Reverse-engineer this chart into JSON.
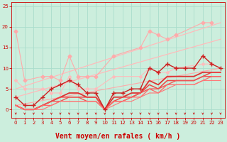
{
  "xlabel": "Vent moyen/en rafales ( km/h )",
  "xlim": [
    -0.5,
    23.5
  ],
  "ylim": [
    -2,
    26
  ],
  "bg_color": "#cceedd",
  "grid_color": "#aaddcc",
  "x_ticks": [
    0,
    1,
    2,
    3,
    4,
    5,
    6,
    7,
    8,
    9,
    10,
    11,
    12,
    13,
    14,
    15,
    16,
    17,
    18,
    19,
    20,
    21,
    22,
    23
  ],
  "y_ticks": [
    0,
    5,
    10,
    15,
    20,
    25
  ],
  "lines": [
    {
      "x": [
        0,
        1,
        3,
        4,
        5,
        6,
        7,
        8,
        9,
        11,
        14,
        15,
        16,
        17,
        18,
        21,
        22
      ],
      "y": [
        19,
        7,
        8,
        8,
        7,
        13,
        8,
        8,
        8,
        13,
        15,
        19,
        18,
        17,
        18,
        21,
        21
      ],
      "color": "#ffaaaa",
      "lw": 0.8,
      "marker": "D",
      "ms": 2.5
    },
    {
      "x": [
        0,
        23
      ],
      "y": [
        5,
        21
      ],
      "color": "#ffbbbb",
      "lw": 0.9,
      "marker": null,
      "ms": 0
    },
    {
      "x": [
        0,
        23
      ],
      "y": [
        3,
        17
      ],
      "color": "#ffbbbb",
      "lw": 0.9,
      "marker": null,
      "ms": 0
    },
    {
      "x": [
        0,
        1,
        3,
        4,
        5,
        6,
        7,
        8,
        9,
        11,
        14,
        15,
        16,
        17,
        18,
        21,
        22
      ],
      "y": [
        7,
        5,
        5,
        4,
        4,
        8,
        5,
        5,
        5,
        8,
        8,
        10,
        9,
        9,
        10,
        11,
        11
      ],
      "color": "#ffbbbb",
      "lw": 0.8,
      "marker": "D",
      "ms": 2.0
    },
    {
      "x": [
        0,
        23
      ],
      "y": [
        1,
        10
      ],
      "color": "#ffaaaa",
      "lw": 0.8,
      "marker": null,
      "ms": 0
    },
    {
      "x": [
        0,
        1,
        2,
        3,
        4,
        5,
        6,
        7,
        8,
        9,
        10,
        11,
        12,
        13,
        14,
        15,
        16,
        17,
        18,
        19,
        20,
        21,
        22,
        23
      ],
      "y": [
        3,
        1,
        1,
        3,
        5,
        6,
        7,
        6,
        4,
        4,
        0,
        4,
        4,
        5,
        5,
        10,
        9,
        11,
        10,
        10,
        10,
        13,
        11,
        10
      ],
      "color": "#cc2222",
      "lw": 1.0,
      "marker": "+",
      "ms": 4
    },
    {
      "x": [
        0,
        1,
        2,
        3,
        4,
        5,
        6,
        7,
        8,
        9,
        10,
        11,
        12,
        13,
        14,
        15,
        16,
        17,
        18,
        19,
        20,
        21,
        22,
        23
      ],
      "y": [
        1,
        0,
        0,
        1,
        2,
        3,
        4,
        4,
        3,
        3,
        0,
        3,
        3,
        4,
        4,
        7,
        6,
        8,
        8,
        8,
        8,
        9,
        9,
        9
      ],
      "color": "#dd3333",
      "lw": 1.3,
      "marker": null,
      "ms": 0
    },
    {
      "x": [
        0,
        1,
        2,
        3,
        4,
        5,
        6,
        7,
        8,
        9,
        10,
        11,
        12,
        13,
        14,
        15,
        16,
        17,
        18,
        19,
        20,
        21,
        22,
        23
      ],
      "y": [
        1,
        0,
        0,
        1,
        2,
        3,
        3,
        3,
        3,
        3,
        0,
        2,
        3,
        3,
        4,
        6,
        5,
        7,
        7,
        7,
        7,
        8,
        9,
        9
      ],
      "color": "#ee4444",
      "lw": 1.1,
      "marker": null,
      "ms": 0
    },
    {
      "x": [
        0,
        1,
        2,
        3,
        4,
        5,
        6,
        7,
        8,
        9,
        10,
        11,
        12,
        13,
        14,
        15,
        16,
        17,
        18,
        19,
        20,
        21,
        22,
        23
      ],
      "y": [
        1,
        0,
        0,
        1,
        2,
        2,
        3,
        3,
        2,
        2,
        0,
        2,
        2,
        3,
        4,
        5,
        5,
        6,
        7,
        7,
        7,
        8,
        8,
        8
      ],
      "color": "#ee5555",
      "lw": 1.0,
      "marker": null,
      "ms": 0
    },
    {
      "x": [
        0,
        1,
        2,
        3,
        4,
        5,
        6,
        7,
        8,
        9,
        10,
        11,
        12,
        13,
        14,
        15,
        16,
        17,
        18,
        19,
        20,
        21,
        22,
        23
      ],
      "y": [
        1,
        0,
        0,
        1,
        1,
        2,
        2,
        2,
        2,
        2,
        0,
        2,
        2,
        3,
        3,
        5,
        4,
        6,
        6,
        6,
        6,
        7,
        8,
        8
      ],
      "color": "#ff6666",
      "lw": 0.9,
      "marker": null,
      "ms": 0
    },
    {
      "x": [
        0,
        1,
        2,
        3,
        4,
        5,
        6,
        7,
        8,
        9,
        10,
        11,
        12,
        13,
        14,
        15,
        16,
        17,
        18,
        19,
        20,
        21,
        22,
        23
      ],
      "y": [
        1,
        0,
        0,
        0,
        1,
        2,
        2,
        2,
        2,
        2,
        0,
        1,
        2,
        2,
        3,
        4,
        4,
        5,
        6,
        6,
        6,
        7,
        7,
        7
      ],
      "color": "#ff7777",
      "lw": 0.8,
      "marker": null,
      "ms": 0
    }
  ],
  "tick_fontsize": 5,
  "xlabel_fontsize": 7,
  "label_color": "#cc0000",
  "tick_color": "#cc0000",
  "spine_color": "#cc0000"
}
